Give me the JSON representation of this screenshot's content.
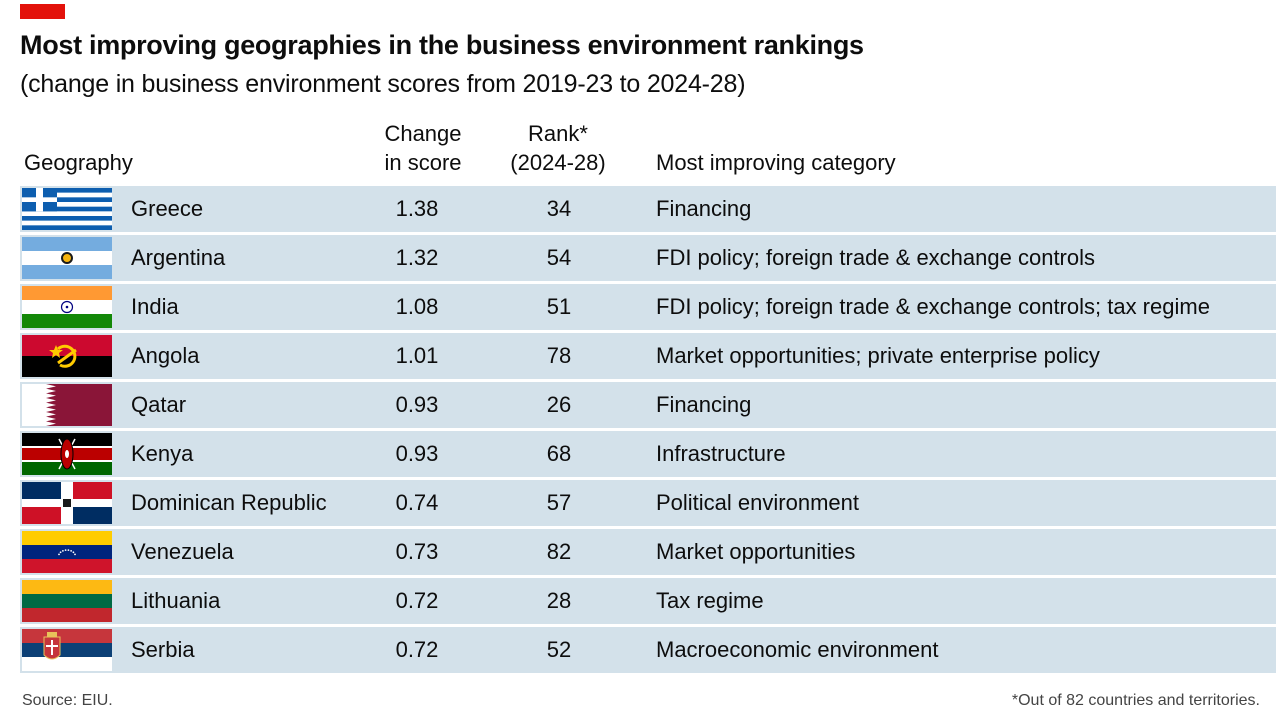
{
  "title": "Most improving geographies in the business environment rankings",
  "subtitle": "(change in business environment scores from 2019-23 to 2024-28)",
  "headers": {
    "geography": "Geography",
    "change_line1": "Change",
    "change_line2": "in score",
    "rank_line1": "Rank*",
    "rank_line2": "(2024-28)",
    "category": "Most improving category"
  },
  "colors": {
    "accent": "#e3120b",
    "row_background": "#d3e1ea"
  },
  "chart_data": {
    "type": "table",
    "columns": [
      "Geography",
      "Change in score",
      "Rank* (2024-28)",
      "Most improving category"
    ],
    "rows": [
      {
        "flag": "greece-flag-icon",
        "geography": "Greece",
        "change": "1.38",
        "rank": "34",
        "category": "Financing"
      },
      {
        "flag": "argentina-flag-icon",
        "geography": "Argentina",
        "change": "1.32",
        "rank": "54",
        "category": "FDI policy; foreign trade & exchange controls"
      },
      {
        "flag": "india-flag-icon",
        "geography": "India",
        "change": "1.08",
        "rank": "51",
        "category": "FDI policy; foreign trade & exchange controls; tax regime"
      },
      {
        "flag": "angola-flag-icon",
        "geography": "Angola",
        "change": "1.01",
        "rank": "78",
        "category": "Market opportunities; private enterprise policy"
      },
      {
        "flag": "qatar-flag-icon",
        "geography": "Qatar",
        "change": "0.93",
        "rank": "26",
        "category": "Financing"
      },
      {
        "flag": "kenya-flag-icon",
        "geography": "Kenya",
        "change": "0.93",
        "rank": "68",
        "category": "Infrastructure"
      },
      {
        "flag": "dominican-republic-flag-icon",
        "geography": "Dominican Republic",
        "change": "0.74",
        "rank": "57",
        "category": "Political environment"
      },
      {
        "flag": "venezuela-flag-icon",
        "geography": "Venezuela",
        "change": "0.73",
        "rank": "82",
        "category": "Market opportunities"
      },
      {
        "flag": "lithuania-flag-icon",
        "geography": "Lithuania",
        "change": "0.72",
        "rank": "28",
        "category": "Tax regime"
      },
      {
        "flag": "serbia-flag-icon",
        "geography": "Serbia",
        "change": "0.72",
        "rank": "52",
        "category": "Macroeconomic environment"
      }
    ]
  },
  "footer": {
    "source": "Source: EIU.",
    "note": "*Out of 82 countries and territories."
  }
}
